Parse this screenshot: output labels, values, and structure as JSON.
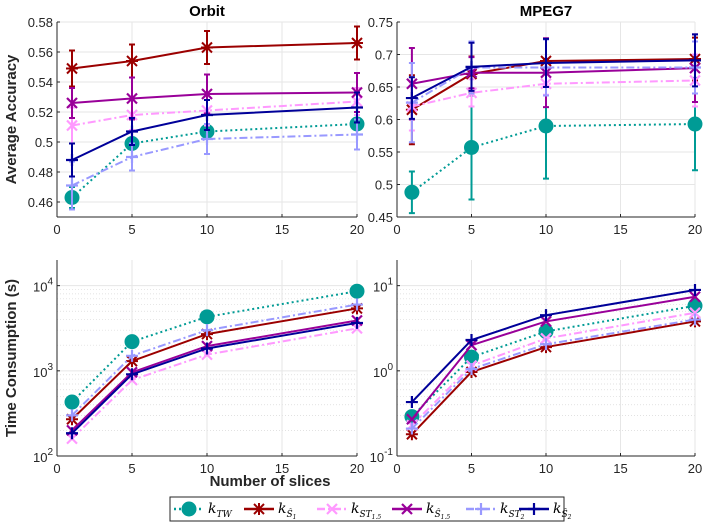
{
  "chart_data": [
    {
      "id": "orbit-accuracy",
      "type": "line",
      "title": "Orbit",
      "xlabel": "",
      "ylabel": "Average Accuracy",
      "yscale": "linear",
      "xlim": [
        0,
        20
      ],
      "ylim": [
        0.45,
        0.58
      ],
      "xticks": [
        0,
        5,
        10,
        15,
        20
      ],
      "xtick_labels": [
        "0",
        "5",
        "10",
        "15",
        "20"
      ],
      "yticks": [
        0.46,
        0.48,
        0.5,
        0.52,
        0.54,
        0.56,
        0.58
      ],
      "ytick_labels": [
        "0.46",
        "0.48",
        "0.5",
        "0.52",
        "0.54",
        "0.56",
        "0.58"
      ],
      "grid": true,
      "x": [
        1,
        5,
        10,
        20
      ],
      "series": [
        {
          "key": "ktw",
          "values": [
            0.463,
            0.499,
            0.507,
            0.512
          ],
          "err": [
            0.007,
            0.003,
            0.003,
            0.003
          ]
        },
        {
          "key": "ks1",
          "values": [
            0.549,
            0.554,
            0.563,
            0.566
          ],
          "err": [
            0.012,
            0.011,
            0.011,
            0.011
          ]
        },
        {
          "key": "kst15",
          "values": [
            0.511,
            0.518,
            0.521,
            0.527
          ],
          "err": [
            0.012,
            0.01,
            0.01,
            0.009
          ]
        },
        {
          "key": "ks15",
          "values": [
            0.526,
            0.529,
            0.532,
            0.533
          ],
          "err": [
            0.01,
            0.014,
            0.013,
            0.013
          ]
        },
        {
          "key": "kst2",
          "values": [
            0.471,
            0.49,
            0.502,
            0.505
          ],
          "err": [
            0.016,
            0.009,
            0.01,
            0.01
          ]
        },
        {
          "key": "ks2",
          "values": [
            0.488,
            0.507,
            0.518,
            0.523
          ],
          "err": [
            0.011,
            0.009,
            0.01,
            0.01
          ]
        }
      ]
    },
    {
      "id": "mpeg7-accuracy",
      "type": "line",
      "title": "MPEG7",
      "xlabel": "",
      "ylabel": "",
      "yscale": "linear",
      "xlim": [
        0,
        20
      ],
      "ylim": [
        0.45,
        0.75
      ],
      "xticks": [
        0,
        5,
        10,
        15,
        20
      ],
      "xtick_labels": [
        "0",
        "5",
        "10",
        "15",
        "20"
      ],
      "yticks": [
        0.45,
        0.5,
        0.55,
        0.6,
        0.65,
        0.7,
        0.75
      ],
      "ytick_labels": [
        "0.45",
        "0.5",
        "0.55",
        "0.6",
        "0.65",
        "0.7",
        "0.75"
      ],
      "grid": true,
      "x": [
        1,
        5,
        10,
        20
      ],
      "series": [
        {
          "key": "ktw",
          "values": [
            0.488,
            0.557,
            0.59,
            0.593
          ],
          "err": [
            0.032,
            0.08,
            0.081,
            0.071
          ]
        },
        {
          "key": "ks1",
          "values": [
            0.615,
            0.67,
            0.69,
            0.693
          ],
          "err": [
            0.053,
            0.027,
            0.003,
            0.033
          ]
        },
        {
          "key": "kst15",
          "values": [
            0.62,
            0.641,
            0.655,
            0.66
          ],
          "err": [
            0.037,
            0.021,
            0.017,
            0.04
          ]
        },
        {
          "key": "ks15",
          "values": [
            0.655,
            0.672,
            0.672,
            0.679
          ],
          "err": [
            0.055,
            0.024,
            0.053,
            0.052
          ]
        },
        {
          "key": "kst2",
          "values": [
            0.626,
            0.68,
            0.68,
            0.68
          ],
          "err": [
            0.061,
            0.04,
            0.043,
            0.04
          ]
        },
        {
          "key": "ks2",
          "values": [
            0.633,
            0.681,
            0.687,
            0.691
          ],
          "err": [
            0.032,
            0.037,
            0.037,
            0.04
          ]
        }
      ]
    },
    {
      "id": "orbit-time",
      "type": "line",
      "title": "",
      "xlabel": "",
      "ylabel": "Time Consumption (s)",
      "yscale": "log",
      "xlim": [
        0,
        20
      ],
      "ylim": [
        100,
        20000
      ],
      "xticks": [
        0,
        5,
        10,
        15,
        20
      ],
      "xtick_labels": [
        "0",
        "5",
        "10",
        "15",
        "20"
      ],
      "yticks": [
        100,
        1000,
        10000
      ],
      "ytick_labels": [
        {
          "base": "10",
          "exp": "2"
        },
        {
          "base": "10",
          "exp": "3"
        },
        {
          "base": "10",
          "exp": "4"
        }
      ],
      "grid": true,
      "minor_grid": true,
      "x": [
        1,
        5,
        10,
        20
      ],
      "series": [
        {
          "key": "ktw",
          "values": [
            430,
            2200,
            4300,
            8600
          ]
        },
        {
          "key": "ks1",
          "values": [
            270,
            1300,
            2700,
            5400
          ]
        },
        {
          "key": "kst15",
          "values": [
            160,
            780,
            1550,
            3150
          ]
        },
        {
          "key": "ks15",
          "values": [
            200,
            960,
            1950,
            3900
          ]
        },
        {
          "key": "kst2",
          "values": [
            300,
            1500,
            3000,
            6000
          ]
        },
        {
          "key": "ks2",
          "values": [
            185,
            910,
            1830,
            3650
          ]
        }
      ]
    },
    {
      "id": "mpeg7-time",
      "type": "line",
      "title": "",
      "xlabel": "",
      "ylabel": "",
      "yscale": "log",
      "xlim": [
        0,
        20
      ],
      "ylim": [
        0.1,
        20
      ],
      "xticks": [
        0,
        5,
        10,
        15,
        20
      ],
      "xtick_labels": [
        "0",
        "5",
        "10",
        "15",
        "20"
      ],
      "yticks": [
        0.1,
        1,
        10
      ],
      "ytick_labels": [
        {
          "base": "10",
          "exp": "-1"
        },
        {
          "base": "10",
          "exp": "0"
        },
        {
          "base": "10",
          "exp": "1"
        }
      ],
      "grid": true,
      "minor_grid": true,
      "x": [
        1,
        5,
        10,
        20
      ],
      "series": [
        {
          "key": "ktw",
          "values": [
            0.29,
            1.45,
            2.9,
            5.8
          ]
        },
        {
          "key": "ks1",
          "values": [
            0.18,
            0.97,
            1.9,
            3.8
          ]
        },
        {
          "key": "kst15",
          "values": [
            0.23,
            1.15,
            2.4,
            4.8
          ]
        },
        {
          "key": "ks15",
          "values": [
            0.27,
            2.0,
            3.8,
            7.4
          ]
        },
        {
          "key": "kst2",
          "values": [
            0.21,
            1.05,
            2.05,
            4.0
          ]
        },
        {
          "key": "ks2",
          "values": [
            0.43,
            2.3,
            4.5,
            8.9
          ]
        }
      ]
    }
  ],
  "shared": {
    "xlabel": "Number of slices"
  },
  "legend": {
    "placement": "bottom-center",
    "entries": [
      {
        "key": "ktw",
        "base": "k",
        "sub": "TW",
        "sup": "",
        "color": "#009b95",
        "line": "dotted",
        "marker": "circle"
      },
      {
        "key": "ks1",
        "base": "k",
        "sub": "Ŝ",
        "subsub": "1",
        "sup": "1",
        "color": "#9b0000",
        "line": "solid",
        "marker": "asterisk"
      },
      {
        "key": "kst15",
        "base": "k",
        "sub": "ST",
        "subsub": "1.5",
        "sup": "1.5",
        "color": "#ff99ff",
        "line": "dashdot",
        "marker": "x"
      },
      {
        "key": "ks15",
        "base": "k",
        "sub": "Ŝ",
        "subsub": "1.5",
        "sup": "1.5",
        "color": "#990099",
        "line": "solid",
        "marker": "x"
      },
      {
        "key": "kst2",
        "base": "k",
        "sub": "ST",
        "subsub": "2",
        "sup": "2",
        "color": "#9999ff",
        "line": "dashdot",
        "marker": "plus"
      },
      {
        "key": "ks2",
        "base": "k",
        "sub": "Ŝ",
        "subsub": "2",
        "sup": "2",
        "color": "#000099",
        "line": "solid",
        "marker": "plus"
      }
    ]
  }
}
